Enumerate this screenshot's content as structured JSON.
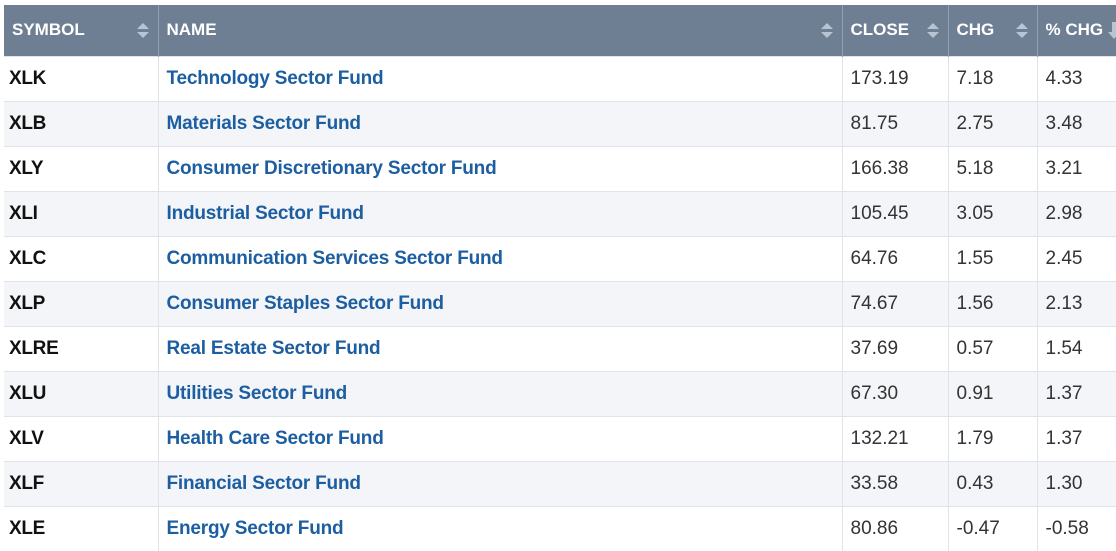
{
  "table": {
    "columns": [
      {
        "key": "symbol",
        "label": "SYMBOL"
      },
      {
        "key": "name",
        "label": "NAME"
      },
      {
        "key": "close",
        "label": "CLOSE"
      },
      {
        "key": "chg",
        "label": "CHG"
      },
      {
        "key": "pct_chg",
        "label": "% CHG"
      }
    ],
    "rows": [
      {
        "symbol": "XLK",
        "name": "Technology Sector Fund",
        "close": "173.19",
        "chg": "7.18",
        "pct_chg": "4.33"
      },
      {
        "symbol": "XLB",
        "name": "Materials Sector Fund",
        "close": "81.75",
        "chg": "2.75",
        "pct_chg": "3.48"
      },
      {
        "symbol": "XLY",
        "name": "Consumer Discretionary Sector Fund",
        "close": "166.38",
        "chg": "5.18",
        "pct_chg": "3.21"
      },
      {
        "symbol": "XLI",
        "name": "Industrial Sector Fund",
        "close": "105.45",
        "chg": "3.05",
        "pct_chg": "2.98"
      },
      {
        "symbol": "XLC",
        "name": "Communication Services Sector Fund",
        "close": "64.76",
        "chg": "1.55",
        "pct_chg": "2.45"
      },
      {
        "symbol": "XLP",
        "name": "Consumer Staples Sector Fund",
        "close": "74.67",
        "chg": "1.56",
        "pct_chg": "2.13"
      },
      {
        "symbol": "XLRE",
        "name": "Real Estate Sector Fund",
        "close": "37.69",
        "chg": "0.57",
        "pct_chg": "1.54"
      },
      {
        "symbol": "XLU",
        "name": "Utilities Sector Fund",
        "close": "67.30",
        "chg": "0.91",
        "pct_chg": "1.37"
      },
      {
        "symbol": "XLV",
        "name": "Health Care Sector Fund",
        "close": "132.21",
        "chg": "1.79",
        "pct_chg": "1.37"
      },
      {
        "symbol": "XLF",
        "name": "Financial Sector Fund",
        "close": "33.58",
        "chg": "0.43",
        "pct_chg": "1.30"
      },
      {
        "symbol": "XLE",
        "name": "Energy Sector Fund",
        "close": "80.86",
        "chg": "-0.47",
        "pct_chg": "-0.58"
      }
    ]
  },
  "icons": {
    "sort": "sort-icon",
    "sort_desc": "sort-desc-icon"
  },
  "colors": {
    "header_bg": "#6f7f93",
    "link": "#1d5ea1",
    "row_alt": "#f3f5f8"
  }
}
